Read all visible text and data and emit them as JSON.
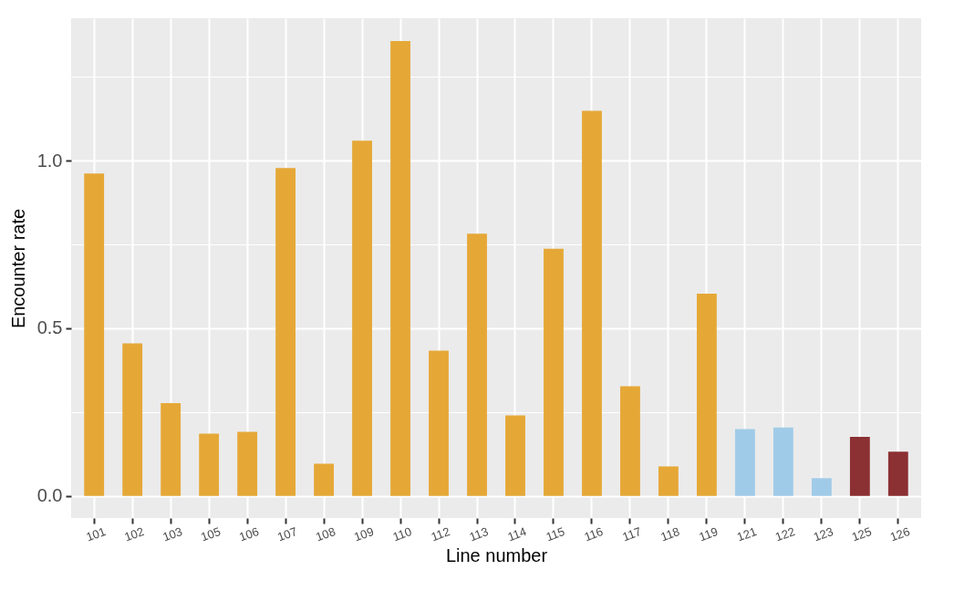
{
  "chart_data": {
    "type": "bar",
    "xlabel": "Line number",
    "ylabel": "Encounter rate",
    "categories": [
      "101",
      "102",
      "103",
      "105",
      "106",
      "107",
      "108",
      "109",
      "110",
      "112",
      "113",
      "114",
      "115",
      "116",
      "117",
      "118",
      "119",
      "121",
      "122",
      "123",
      "125",
      "126"
    ],
    "values": [
      0.962,
      0.455,
      0.277,
      0.186,
      0.191,
      0.978,
      0.096,
      1.06,
      1.357,
      0.433,
      0.782,
      0.24,
      0.737,
      1.149,
      0.327,
      0.088,
      0.603,
      0.199,
      0.204,
      0.053,
      0.176,
      0.132
    ],
    "colors": [
      "#e5a837",
      "#e5a837",
      "#e5a837",
      "#e5a837",
      "#e5a837",
      "#e5a837",
      "#e5a837",
      "#e5a837",
      "#e5a837",
      "#e5a837",
      "#e5a837",
      "#e5a837",
      "#e5a837",
      "#e5a837",
      "#e5a837",
      "#e5a837",
      "#e5a837",
      "#a0cbe8",
      "#a0cbe8",
      "#a0cbe8",
      "#8b3033",
      "#8b3033"
    ],
    "ylim": [
      -0.066,
      1.425
    ],
    "yticks": [
      {
        "value": 0,
        "label": "0.0"
      },
      {
        "value": 0.25,
        "label": null
      },
      {
        "value": 0.5,
        "label": "0.5"
      },
      {
        "value": 0.75,
        "label": null
      },
      {
        "value": 1,
        "label": "1.0"
      },
      {
        "value": 1.25,
        "label": null
      }
    ],
    "grid": true
  }
}
